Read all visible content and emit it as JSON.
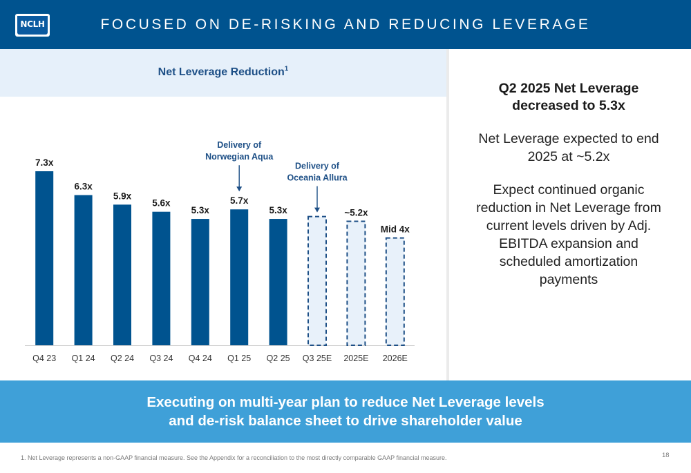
{
  "header": {
    "logo_text": "NCLH",
    "title": "FOCUSED ON DE-RISKING AND REDUCING LEVERAGE"
  },
  "chart_data": {
    "type": "bar",
    "title": "Net Leverage Reduction",
    "title_footnote_marker": "1",
    "categories": [
      "Q4 23",
      "Q1 24",
      "Q2 24",
      "Q3 24",
      "Q4 24",
      "Q1 25",
      "Q2 25",
      "Q3 25E",
      "2025E",
      "2026E"
    ],
    "values": [
      7.3,
      6.3,
      5.9,
      5.6,
      5.3,
      5.7,
      5.3,
      5.4,
      5.2,
      4.5
    ],
    "data_labels": [
      "7.3x",
      "6.3x",
      "5.9x",
      "5.6x",
      "5.3x",
      "5.7x",
      "5.3x",
      "",
      "~5.2x",
      "Mid 4x"
    ],
    "estimated": [
      false,
      false,
      false,
      false,
      false,
      false,
      false,
      true,
      true,
      true
    ],
    "ylim": [
      0,
      7.3
    ],
    "colors": {
      "actual": "#00538f",
      "estimate_fill": "#e8f1fa",
      "estimate_stroke": "#1d4f86",
      "label": "#1a1a1a",
      "annotation": "#1d4f86"
    },
    "annotations": [
      {
        "lines": [
          "Delivery of",
          "Norwegian Aqua"
        ],
        "category": "Q1 25"
      },
      {
        "lines": [
          "Delivery of",
          "Oceania Allura"
        ],
        "category": "Q3 25E"
      }
    ]
  },
  "right_panel": {
    "headline": "Q2 2025 Net Leverage decreased to 5.3x",
    "point1": "Net Leverage expected to end 2025 at ~5.2x",
    "point2": "Expect continued organic reduction in Net Leverage from current levels driven by Adj. EBITDA expansion and scheduled amortization payments"
  },
  "banner": {
    "line1": "Executing on multi-year plan to reduce Net Leverage levels",
    "line2": "and de-risk balance sheet to drive shareholder value"
  },
  "footer": {
    "footnote": "1.   Net Leverage represents a non-GAAP financial measure. See the Appendix for a reconciliation to the most directly comparable GAAP financial measure.",
    "page_number": "18"
  }
}
